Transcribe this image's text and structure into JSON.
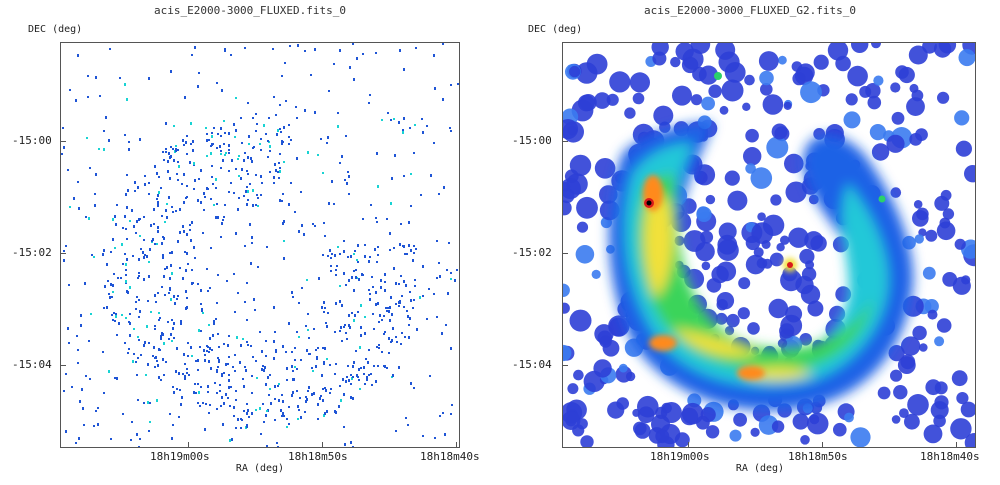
{
  "panels": [
    {
      "title": "acis_E2000-3000_FLUXED.fits_0",
      "ylabel": "DEC (deg)",
      "xlabel": "RA (deg)",
      "yticks": [
        "-15:00",
        "-15:02",
        "-15:04"
      ],
      "xticks": [
        "18h19m00s",
        "18h18m50s",
        "18h18m40s"
      ]
    },
    {
      "title": "acis_E2000-3000_FLUXED_G2.fits_0",
      "ylabel": "DEC (deg)",
      "xlabel": "RA (deg)",
      "yticks": [
        "-15:00",
        "-15:02",
        "-15:04"
      ],
      "xticks": [
        "18h19m00s",
        "18h18m50s",
        "18h18m40s"
      ]
    }
  ],
  "colors": {
    "low": "#1f55d6",
    "mid": "#19d3d3",
    "green": "#22cc44",
    "yellow": "#f6e13a",
    "orange": "#ff8a1f",
    "red": "#d81b1b",
    "peak": "#000000"
  }
}
